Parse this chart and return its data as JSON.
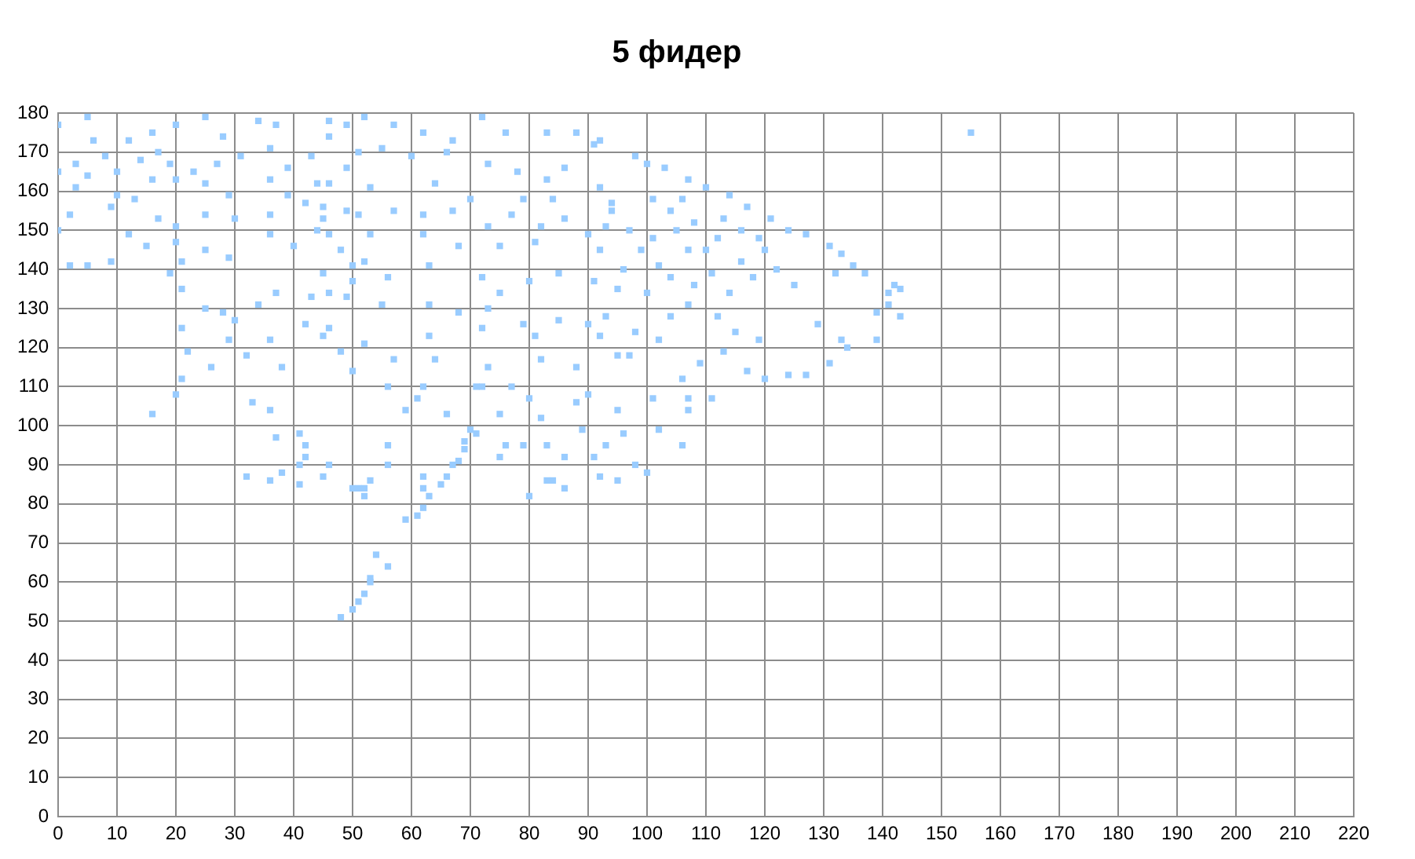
{
  "chart_data": {
    "type": "scatter",
    "title": "5 фидер",
    "color": "#99ccff",
    "marker": "square",
    "grid": true,
    "xlim": [
      0,
      220
    ],
    "xticks": [
      0,
      10,
      20,
      30,
      40,
      50,
      60,
      70,
      80,
      90,
      100,
      110,
      120,
      130,
      140,
      150,
      160,
      170,
      180,
      190,
      200,
      210,
      220
    ],
    "ylim": [
      0,
      180
    ],
    "yticks": [
      0,
      10,
      20,
      30,
      40,
      50,
      60,
      70,
      80,
      90,
      100,
      110,
      120,
      130,
      140,
      150,
      160,
      170,
      180
    ],
    "x": [
      155,
      54,
      56,
      53,
      53,
      52,
      51,
      50,
      48,
      59,
      61,
      62,
      63,
      65,
      66,
      67,
      68,
      69,
      69,
      70,
      75,
      76,
      52,
      53,
      62,
      62,
      80,
      83,
      32,
      36,
      38,
      41,
      41,
      45,
      46,
      50,
      52,
      16,
      20,
      33,
      36,
      37,
      41,
      42,
      42,
      56,
      56,
      51,
      142,
      143,
      141,
      141,
      139,
      143,
      139,
      137,
      135,
      132,
      131,
      133,
      127,
      131,
      133,
      127,
      124,
      120,
      134,
      129,
      91,
      98,
      100,
      103,
      107,
      110,
      114,
      117,
      121,
      124,
      120,
      105,
      107,
      102,
      111,
      114,
      107,
      100,
      94,
      92,
      93,
      98,
      97,
      102,
      106,
      109,
      115,
      113,
      119,
      117,
      111,
      107,
      90,
      104,
      108,
      112,
      101,
      110,
      104,
      108,
      116,
      118,
      122,
      125,
      112,
      104,
      96,
      99,
      97,
      101,
      106,
      113,
      116,
      119,
      90,
      89,
      93,
      98,
      100,
      84,
      86,
      92,
      95,
      82,
      83,
      86,
      91,
      96,
      102,
      106,
      107,
      101,
      95,
      88,
      79,
      62,
      71,
      77,
      59,
      66,
      71,
      75,
      5,
      0,
      6,
      12,
      16,
      20,
      25,
      28,
      17,
      8,
      3,
      0,
      5,
      10,
      14,
      19,
      23,
      27,
      31,
      36,
      39,
      43,
      46,
      49,
      34,
      37,
      3,
      10,
      16,
      20,
      25,
      29,
      36,
      39,
      44,
      49,
      2,
      9,
      13,
      17,
      20,
      25,
      30,
      36,
      42,
      45,
      49,
      2,
      5,
      9,
      12,
      15,
      20,
      21,
      25,
      29,
      36,
      40,
      44,
      48,
      50,
      0,
      19,
      21,
      25,
      28,
      30,
      34,
      37,
      43,
      46,
      50,
      21,
      22,
      21,
      26,
      29,
      32,
      36,
      38,
      42,
      46,
      48,
      50,
      46,
      52,
      57,
      62,
      67,
      72,
      76,
      83,
      88,
      92,
      51,
      55,
      60,
      66,
      73,
      78,
      83,
      86,
      46,
      53,
      64,
      70,
      79,
      84,
      94,
      92,
      45,
      51,
      57,
      62,
      67,
      73,
      77,
      82,
      86,
      93,
      46,
      53,
      62,
      68,
      75,
      81,
      90,
      45,
      52,
      56,
      63,
      72,
      75,
      80,
      85,
      91,
      95,
      49,
      55,
      63,
      68,
      73,
      79,
      85,
      92,
      45,
      52,
      57,
      63,
      64,
      72,
      73,
      81,
      82,
      88,
      95,
      56,
      61,
      72,
      80
    ],
    "values": [
      175,
      67,
      64,
      61,
      60,
      57,
      55,
      53,
      51,
      76,
      77,
      79,
      82,
      85,
      87,
      90,
      91,
      94,
      96,
      99,
      92,
      95,
      84,
      86,
      87,
      84,
      82,
      86,
      87,
      86,
      88,
      90,
      85,
      87,
      90,
      84,
      82,
      103,
      108,
      106,
      104,
      97,
      98,
      95,
      92,
      95,
      90,
      84,
      136,
      135,
      134,
      131,
      129,
      128,
      122,
      139,
      141,
      139,
      146,
      144,
      149,
      116,
      122,
      113,
      113,
      112,
      120,
      126,
      172,
      169,
      167,
      166,
      163,
      161,
      159,
      156,
      153,
      150,
      145,
      150,
      145,
      141,
      139,
      134,
      131,
      134,
      155,
      145,
      128,
      124,
      118,
      122,
      112,
      116,
      124,
      119,
      122,
      114,
      107,
      107,
      126,
      155,
      152,
      148,
      148,
      145,
      138,
      136,
      142,
      138,
      140,
      136,
      128,
      128,
      140,
      145,
      150,
      158,
      158,
      153,
      150,
      148,
      108,
      99,
      95,
      90,
      88,
      86,
      84,
      87,
      86,
      102,
      95,
      92,
      92,
      98,
      99,
      95,
      104,
      107,
      104,
      106,
      95,
      110,
      110,
      110,
      104,
      103,
      98,
      103,
      179,
      177,
      173,
      173,
      175,
      177,
      179,
      174,
      170,
      169,
      167,
      165,
      164,
      165,
      168,
      167,
      165,
      167,
      169,
      171,
      166,
      169,
      174,
      177,
      178,
      177,
      161,
      159,
      163,
      163,
      162,
      159,
      163,
      159,
      162,
      166,
      154,
      156,
      158,
      153,
      151,
      154,
      153,
      154,
      157,
      153,
      155,
      141,
      141,
      142,
      149,
      146,
      147,
      142,
      145,
      143,
      149,
      146,
      150,
      145,
      141,
      150,
      139,
      135,
      130,
      129,
      127,
      131,
      134,
      133,
      134,
      137,
      125,
      119,
      112,
      115,
      122,
      118,
      122,
      115,
      126,
      125,
      119,
      114,
      178,
      179,
      177,
      175,
      173,
      179,
      175,
      175,
      175,
      173,
      170,
      171,
      169,
      170,
      167,
      165,
      163,
      166,
      162,
      161,
      162,
      158,
      158,
      158,
      157,
      161,
      156,
      154,
      155,
      154,
      155,
      151,
      154,
      151,
      153,
      151,
      149,
      149,
      149,
      146,
      146,
      147,
      149,
      139,
      142,
      138,
      141,
      138,
      134,
      137,
      139,
      137,
      135,
      133,
      131,
      131,
      129,
      130,
      126,
      127,
      123,
      123,
      121,
      117,
      123,
      117,
      125,
      115,
      123,
      117,
      115,
      118,
      110,
      107,
      110,
      107
    ]
  }
}
